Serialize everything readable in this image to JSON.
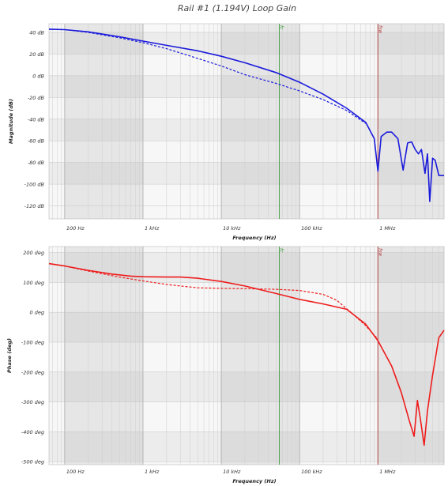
{
  "chart_data": [
    {
      "type": "line",
      "title": "Rail #1 (1.194V) Loop Gain",
      "xlabel": "Frequency (Hz)",
      "ylabel": "Magnitude (dB)",
      "xscale": "log",
      "xlim": [
        63,
        7000000
      ],
      "ylim": [
        -132,
        48
      ],
      "x_ticks": [
        {
          "v": 100,
          "label": "100 Hz"
        },
        {
          "v": 1000,
          "label": "1 kHz"
        },
        {
          "v": 10000,
          "label": "10 kHz"
        },
        {
          "v": 100000,
          "label": "100 kHz"
        },
        {
          "v": 1000000,
          "label": "1 MHz"
        }
      ],
      "y_ticks": [
        {
          "v": 40,
          "label": "40 dB"
        },
        {
          "v": 20,
          "label": "20 dB"
        },
        {
          "v": 0,
          "label": "0 dB"
        },
        {
          "v": -20,
          "label": "-20 dB"
        },
        {
          "v": -40,
          "label": "-40 dB"
        },
        {
          "v": -60,
          "label": "-60 dB"
        },
        {
          "v": -80,
          "label": "-80 dB"
        },
        {
          "v": -100,
          "label": "-100 dB"
        },
        {
          "v": -120,
          "label": "-120 dB"
        }
      ],
      "markers": [
        {
          "x": 55000,
          "label": "fc",
          "color": "#3a9b3a"
        },
        {
          "x": 1000000,
          "label": "fsw",
          "color": "#b43c3c"
        }
      ],
      "series": [
        {
          "style": "solid",
          "color": "#1a1adc",
          "x": [
            63,
            100,
            200,
            500,
            1000,
            2000,
            5000,
            10000,
            20000,
            50000,
            100000,
            200000,
            400000,
            700000,
            900000,
            1000000,
            1100000,
            1300000,
            1500000,
            1800000,
            2100000,
            2400000,
            2700000,
            3000000,
            3300000,
            3600000,
            4000000,
            4300000,
            4600000,
            5000000,
            5400000,
            6000000,
            7000000
          ],
          "y": [
            43,
            42.5,
            40.5,
            36,
            32,
            28,
            23,
            18,
            12,
            3,
            -6,
            -17,
            -30,
            -43,
            -58,
            -88,
            -56,
            -52,
            -52,
            -58,
            -87,
            -62,
            -61,
            -68,
            -72,
            -68,
            -90,
            -72,
            -116,
            -76,
            -78,
            -92,
            -92
          ]
        },
        {
          "style": "dashed",
          "color": "#1a1adc",
          "x": [
            63,
            100,
            200,
            500,
            1000,
            2000,
            5000,
            10000,
            20000,
            50000,
            100000,
            200000,
            400000,
            700000
          ],
          "y": [
            43,
            42.5,
            40,
            35,
            30.5,
            25,
            16,
            9,
            1,
            -7,
            -14,
            -22,
            -32,
            -44
          ]
        }
      ]
    },
    {
      "type": "line",
      "title": "",
      "xlabel": "Frequency (Hz)",
      "ylabel": "Phase (deg)",
      "xscale": "log",
      "xlim": [
        63,
        7000000
      ],
      "ylim": [
        -510,
        220
      ],
      "x_ticks": [
        {
          "v": 100,
          "label": "100 Hz"
        },
        {
          "v": 1000,
          "label": "1 kHz"
        },
        {
          "v": 10000,
          "label": "10 kHz"
        },
        {
          "v": 100000,
          "label": "100 kHz"
        },
        {
          "v": 1000000,
          "label": "1 MHz"
        }
      ],
      "y_ticks": [
        {
          "v": 200,
          "label": "200 deg"
        },
        {
          "v": 100,
          "label": "100 deg"
        },
        {
          "v": 0,
          "label": "0 deg"
        },
        {
          "v": -100,
          "label": "-100 deg"
        },
        {
          "v": -200,
          "label": "-200 deg"
        },
        {
          "v": -300,
          "label": "-300 deg"
        },
        {
          "v": -400,
          "label": "-400 deg"
        },
        {
          "v": -500,
          "label": "-500 deg"
        }
      ],
      "markers": [
        {
          "x": 55000,
          "label": "fc",
          "color": "#3a9b3a"
        },
        {
          "x": 1000000,
          "label": "fsw",
          "color": "#b43c3c"
        }
      ],
      "series": [
        {
          "style": "solid",
          "color": "#ee1c1c",
          "x": [
            63,
            100,
            200,
            400,
            700,
            1000,
            2000,
            3000,
            5000,
            10000,
            20000,
            50000,
            100000,
            200000,
            400000,
            700000,
            1000000,
            1500000,
            2000000,
            2500000,
            2900000,
            3200000,
            3500000,
            3900000,
            4300000,
            5000000,
            6000000,
            7000000
          ],
          "y": [
            163,
            155,
            140,
            128,
            121,
            119,
            118,
            118,
            114,
            103,
            88,
            63,
            43,
            28,
            10,
            -40,
            -95,
            -180,
            -270,
            -360,
            -415,
            -295,
            -360,
            -445,
            -330,
            -210,
            -85,
            -60
          ]
        },
        {
          "style": "dashed",
          "color": "#ee1c1c",
          "x": [
            63,
            100,
            200,
            500,
            1000,
            2000,
            5000,
            10000,
            20000,
            50000,
            100000,
            200000,
            300000,
            500000,
            700000,
            1000000
          ],
          "y": [
            163,
            155,
            138,
            118,
            105,
            93,
            82,
            80,
            79,
            77,
            73,
            60,
            40,
            -10,
            -45,
            -90
          ]
        }
      ]
    }
  ]
}
